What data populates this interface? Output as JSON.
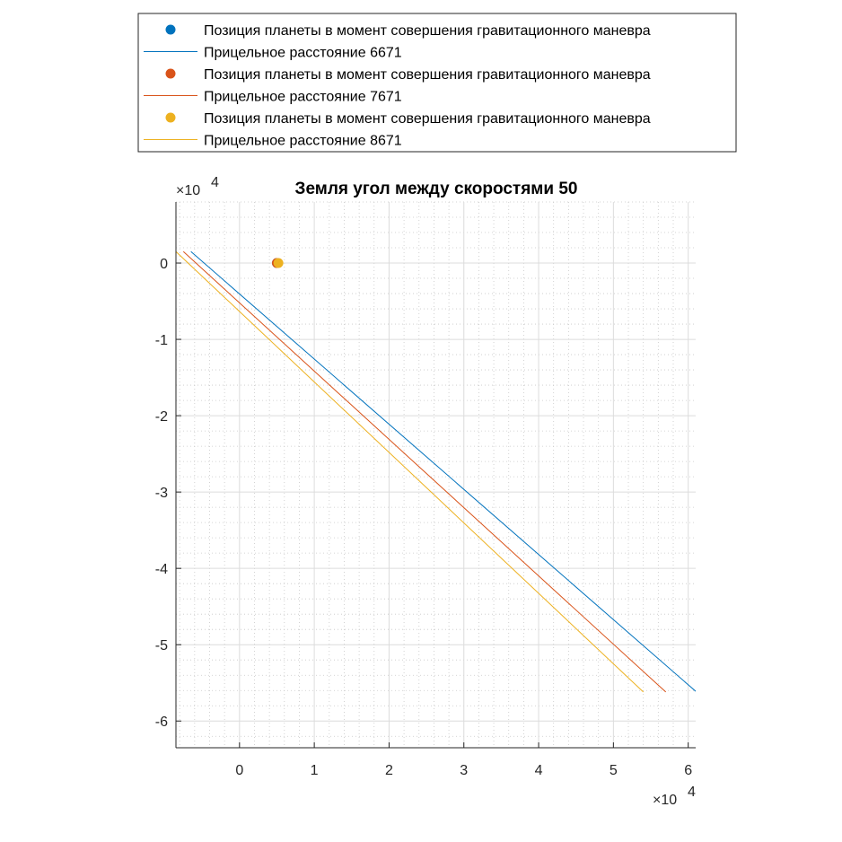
{
  "chart_data": {
    "type": "line",
    "title": "Земля угол между скоростями 50",
    "xlabel": "",
    "ylabel": "",
    "x_exponent_label": "×10",
    "x_exponent_power": "4",
    "y_exponent_label": "×10",
    "y_exponent_power": "4",
    "xlim": [
      -8500,
      61000
    ],
    "ylim": [
      -63500,
      8000
    ],
    "x_ticks": [
      0,
      10000,
      20000,
      30000,
      40000,
      50000,
      60000
    ],
    "x_tick_labels": [
      "0",
      "1",
      "2",
      "3",
      "4",
      "5",
      "6"
    ],
    "y_ticks": [
      0,
      -10000,
      -20000,
      -30000,
      -40000,
      -50000,
      -60000
    ],
    "y_tick_labels": [
      "0",
      "-1",
      "-2",
      "-3",
      "-4",
      "-5",
      "-6"
    ],
    "grid": true,
    "minor_grid": true,
    "legend_position": "top-outside",
    "series": [
      {
        "name": "Позиция планеты в момент совершения гравитационного маневра",
        "kind": "marker",
        "color": "#0072BD",
        "points": [
          [
            5000,
            0
          ]
        ]
      },
      {
        "name": "Прицельное расстояние 6671",
        "kind": "line",
        "color": "#0072BD",
        "points": [
          [
            -6500,
            1500
          ],
          [
            61000,
            -56100
          ]
        ]
      },
      {
        "name": "Позиция планеты в момент совершения гравитационного маневра",
        "kind": "marker",
        "color": "#D95319",
        "points": [
          [
            5000,
            0
          ]
        ]
      },
      {
        "name": "Прицельное расстояние 7671",
        "kind": "line",
        "color": "#D95319",
        "points": [
          [
            -7500,
            1500
          ],
          [
            57000,
            -56200
          ]
        ]
      },
      {
        "name": "Позиция планеты в момент совершения гравитационного маневра",
        "kind": "marker",
        "color": "#EDB120",
        "points": [
          [
            5200,
            0
          ]
        ]
      },
      {
        "name": "Прицельное расстояние 8671",
        "kind": "line",
        "color": "#EDB120",
        "points": [
          [
            -8500,
            1500
          ],
          [
            54000,
            -56200
          ]
        ]
      }
    ]
  }
}
